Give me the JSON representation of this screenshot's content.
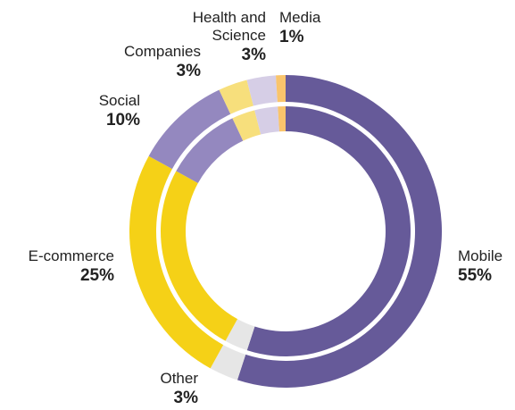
{
  "chart_data": {
    "type": "donut",
    "categories": [
      "Mobile",
      "Other",
      "E-commerce",
      "Social",
      "Companies",
      "Health and Science",
      "Media"
    ],
    "values": [
      55,
      3,
      25,
      10,
      3,
      3,
      1
    ],
    "value_labels": [
      "55%",
      "3%",
      "25%",
      "10%",
      "3%",
      "3%",
      "1%"
    ],
    "colors": [
      "#665a99",
      "#e6e6e6",
      "#f5d117",
      "#9488bf",
      "#f7df7c",
      "#d6cee6",
      "#f9c46c"
    ]
  }
}
